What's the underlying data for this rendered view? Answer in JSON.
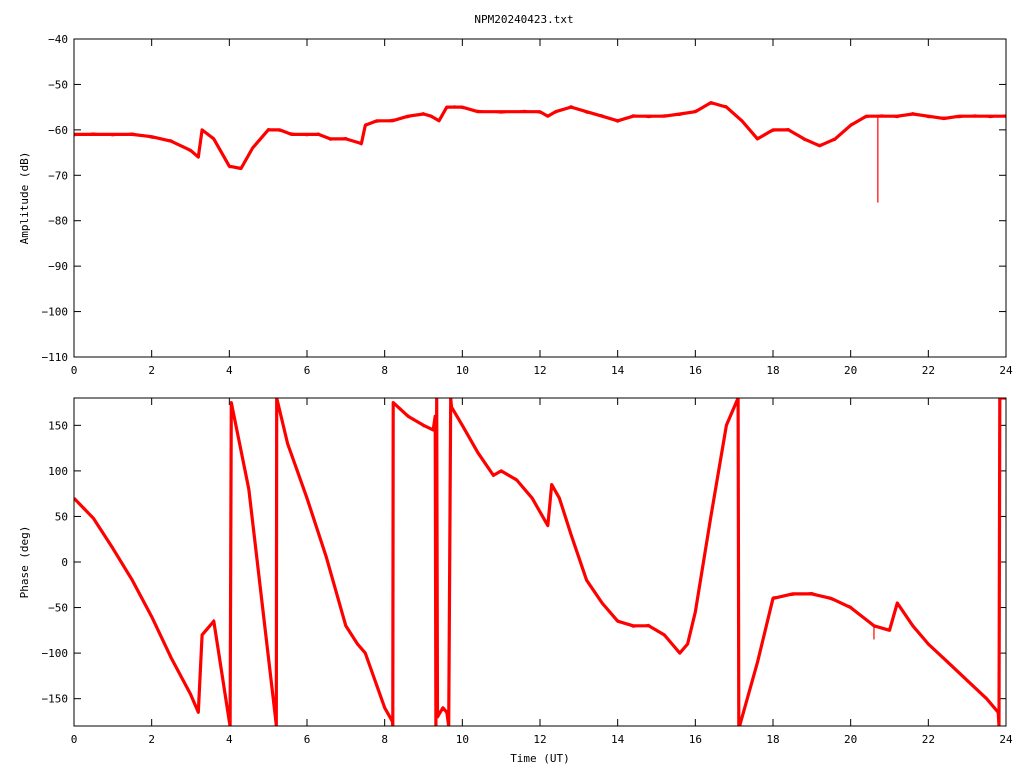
{
  "title": "NPM20240423.txt",
  "colors": {
    "series": "#ff0000",
    "axis": "#000000",
    "background": "#ffffff"
  },
  "chart_data": [
    {
      "type": "line",
      "ylabel": "Amplitude (dB)",
      "xlabel": "",
      "xlim": [
        0,
        24
      ],
      "ylim": [
        -110,
        -40
      ],
      "xticks": [
        0,
        2,
        4,
        6,
        8,
        10,
        12,
        14,
        16,
        18,
        20,
        22,
        24
      ],
      "yticks": [
        -110,
        -100,
        -90,
        -80,
        -70,
        -60,
        -50,
        -40
      ],
      "x": [
        0,
        0.5,
        1,
        1.5,
        2,
        2.5,
        3,
        3.2,
        3.3,
        3.6,
        4,
        4.3,
        4.6,
        5,
        5.3,
        5.6,
        6,
        6.3,
        6.6,
        7,
        7.4,
        7.5,
        7.8,
        8.2,
        8.6,
        9,
        9.2,
        9.4,
        9.6,
        9.8,
        10,
        10.4,
        11,
        11.6,
        12,
        12.2,
        12.4,
        12.8,
        13.2,
        13.6,
        14,
        14.4,
        14.8,
        15.2,
        15.6,
        16,
        16.4,
        16.8,
        17.2,
        17.6,
        18,
        18.4,
        18.8,
        19.2,
        19.6,
        20,
        20.4,
        20.8,
        21.2,
        21.6,
        22,
        22.4,
        22.8,
        23.2,
        23.6,
        24
      ],
      "series": [
        {
          "values": [
            -61,
            -61,
            -61,
            -61,
            -61.5,
            -62.5,
            -64.5,
            -66,
            -60,
            -62,
            -68,
            -68.5,
            -64,
            -60,
            -60,
            -61,
            -61,
            -61,
            -62,
            -62,
            -63,
            -59,
            -58,
            -58,
            -57,
            -56.5,
            -57,
            -58,
            -55,
            -55,
            -55,
            -56,
            -56,
            -56,
            -56,
            -57,
            -56,
            -55,
            -56,
            -57,
            -58,
            -57,
            -57,
            -57,
            -56.5,
            -56,
            -54,
            -55,
            -58,
            -62,
            -60,
            -60,
            -62,
            -63.5,
            -62,
            -59,
            -57,
            -57,
            -57,
            -56.5,
            -57,
            -57.5,
            -57,
            -57,
            -57,
            -57
          ]
        }
      ],
      "spikes": [
        {
          "x": 20.7,
          "y": -76
        }
      ]
    },
    {
      "type": "line",
      "ylabel": "Phase (deg)",
      "xlabel": "Time (UT)",
      "xlim": [
        0,
        24
      ],
      "ylim": [
        -180,
        180
      ],
      "xticks": [
        0,
        2,
        4,
        6,
        8,
        10,
        12,
        14,
        16,
        18,
        20,
        22,
        24
      ],
      "yticks": [
        -150,
        -100,
        -50,
        0,
        50,
        100,
        150
      ],
      "x": [
        0,
        0.5,
        1,
        1.5,
        2,
        2.5,
        3,
        3.2,
        3.3,
        3.6,
        4,
        4.02,
        4.05,
        4.5,
        5.2,
        5.21,
        5.22,
        5.5,
        6,
        6.5,
        7,
        7.3,
        7.5,
        8,
        8.2,
        8.21,
        8.22,
        8.6,
        9,
        9.25,
        9.3,
        9.32,
        9.34,
        9.36,
        9.5,
        9.6,
        9.65,
        9.7,
        9.72,
        10,
        10.4,
        10.8,
        11,
        11.4,
        11.8,
        12.2,
        12.3,
        12.5,
        12.8,
        13.2,
        13.6,
        14,
        14.4,
        14.8,
        15.2,
        15.6,
        15.8,
        16,
        16.4,
        16.8,
        17,
        17.1,
        17.12,
        17.14,
        17.6,
        18,
        18.5,
        19,
        19.5,
        20,
        20.6,
        21,
        21.2,
        21.6,
        22,
        22.5,
        23,
        23.5,
        23.8,
        23.82,
        23.84,
        24
      ],
      "series": [
        {
          "values": [
            70,
            48,
            15,
            -20,
            -60,
            -105,
            -145,
            -165,
            -80,
            -65,
            -175,
            -180,
            175,
            80,
            -175,
            -180,
            180,
            130,
            70,
            5,
            -70,
            -90,
            -100,
            -160,
            -175,
            -180,
            175,
            160,
            150,
            145,
            160,
            -180,
            180,
            -170,
            -160,
            -165,
            -180,
            180,
            170,
            150,
            120,
            95,
            100,
            90,
            70,
            40,
            85,
            70,
            30,
            -20,
            -45,
            -65,
            -70,
            -70,
            -80,
            -100,
            -90,
            -55,
            50,
            150,
            170,
            180,
            -180,
            -180,
            -110,
            -40,
            -35,
            -35,
            -40,
            -50,
            -70,
            -75,
            -45,
            -70,
            -90,
            -110,
            -130,
            -150,
            -165,
            -180,
            180,
            180
          ]
        }
      ],
      "spikes": [
        {
          "x": 20.6,
          "y": -85
        }
      ]
    }
  ]
}
